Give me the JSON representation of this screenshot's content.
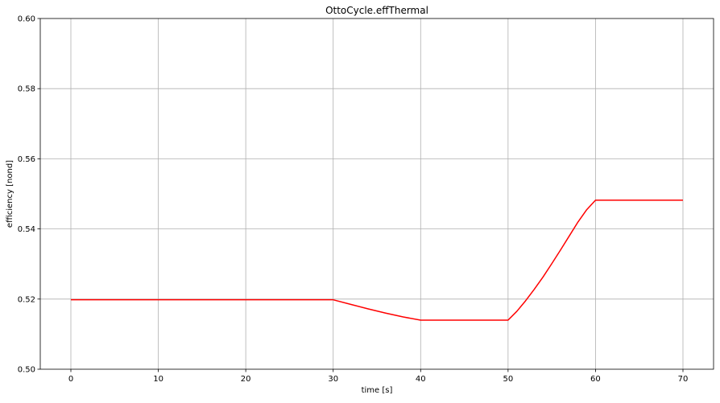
{
  "chart_data": {
    "type": "line",
    "title": "OttoCycle.effThermal",
    "xlabel": "time [s]",
    "ylabel": "efficiency [nond]",
    "xlim": [
      -3.5,
      73.5
    ],
    "ylim": [
      0.5,
      0.6
    ],
    "xticks": [
      0,
      10,
      20,
      30,
      40,
      50,
      60,
      70
    ],
    "yticks": [
      0.5,
      0.52,
      0.54,
      0.56,
      0.58,
      0.6
    ],
    "xtick_labels": [
      "0",
      "10",
      "20",
      "30",
      "40",
      "50",
      "60",
      "70"
    ],
    "ytick_labels": [
      "0.50",
      "0.52",
      "0.54",
      "0.56",
      "0.58",
      "0.60"
    ],
    "grid": true,
    "series": [
      {
        "color": "#ff0000",
        "x": [
          0,
          10,
          20,
          30,
          32,
          34,
          36,
          38,
          40,
          42,
          44,
          46,
          48,
          50,
          51,
          52,
          53,
          54,
          55,
          56,
          57,
          58,
          59,
          60,
          65,
          70
        ],
        "y": [
          0.5198,
          0.5198,
          0.5198,
          0.5198,
          0.5185,
          0.5172,
          0.516,
          0.5149,
          0.514,
          0.514,
          0.514,
          0.514,
          0.514,
          0.514,
          0.5165,
          0.5195,
          0.5228,
          0.5263,
          0.5301,
          0.534,
          0.538,
          0.542,
          0.5455,
          0.5482,
          0.5482,
          0.5482
        ]
      }
    ]
  }
}
